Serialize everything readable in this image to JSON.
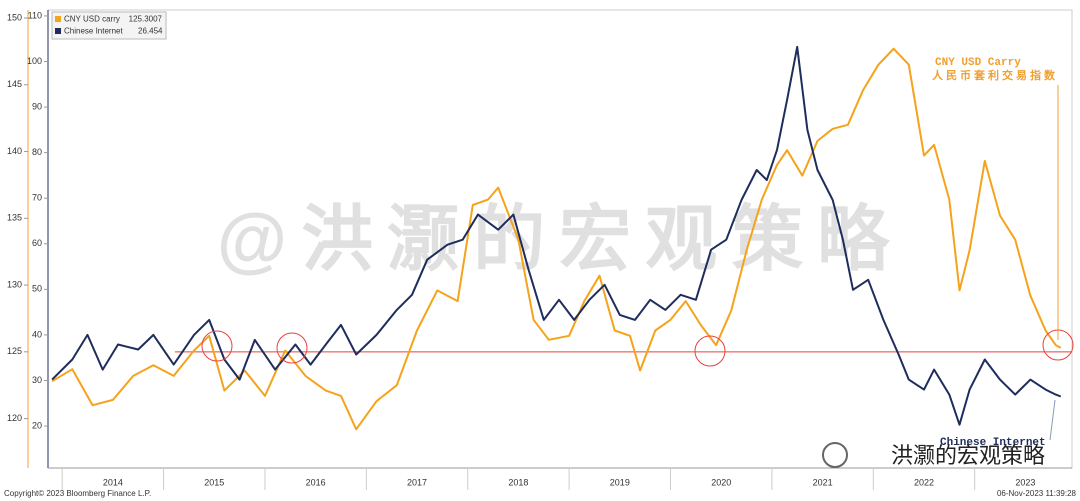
{
  "chart_data": {
    "type": "line",
    "watermark": "@洪灏的宏观策略",
    "logo": "洪灏的宏观策略",
    "source": "Copyright© 2023 Bloomberg Finance L.P.",
    "timestamp": "06-Nov-2023 11:39:28",
    "annotations": [
      "CNY USD Carry",
      "人民币套利交易指数",
      "Chinese Internet"
    ],
    "xlim": [
      2013.86,
      2023.96
    ],
    "xticks": [
      2014,
      2015,
      2016,
      2017,
      2018,
      2019,
      2020,
      2021,
      2022,
      2023
    ],
    "ylim": [
      116.3,
      150.6
    ],
    "yticks": [
      120,
      125,
      130,
      135,
      140,
      145,
      150
    ],
    "y2lim": [
      10.8,
      111.3
    ],
    "y2ticks": [
      20,
      30,
      40,
      50,
      60,
      70,
      80,
      90,
      100,
      110
    ],
    "reference_line": {
      "value": 125,
      "color": "#e8413c"
    },
    "series": [
      {
        "name": "CNY USD carry",
        "last": 125.3007,
        "color": "#f5a31a",
        "x": [
          2013.9,
          2014.1,
          2014.3,
          2014.5,
          2014.7,
          2014.9,
          2015.1,
          2015.3,
          2015.45,
          2015.6,
          2015.8,
          2016.0,
          2016.2,
          2016.4,
          2016.6,
          2016.75,
          2016.9,
          2017.1,
          2017.3,
          2017.5,
          2017.7,
          2017.9,
          2018.05,
          2018.2,
          2018.3,
          2018.5,
          2018.65,
          2018.8,
          2019.0,
          2019.15,
          2019.3,
          2019.45,
          2019.6,
          2019.7,
          2019.85,
          2020.0,
          2020.15,
          2020.3,
          2020.45,
          2020.6,
          2020.75,
          2020.9,
          2021.05,
          2021.15,
          2021.3,
          2021.45,
          2021.6,
          2021.75,
          2021.9,
          2022.05,
          2022.2,
          2022.35,
          2022.5,
          2022.6,
          2022.75,
          2022.85,
          2022.95,
          2023.1,
          2023.25,
          2023.4,
          2023.55,
          2023.7,
          2023.8,
          2023.85
        ],
        "values": [
          122.8,
          123.7,
          121,
          121.4,
          123.2,
          124,
          123.2,
          125.1,
          126.2,
          122.1,
          123.6,
          121.7,
          125.1,
          123.2,
          122.1,
          121.7,
          119.2,
          121.3,
          122.5,
          126.6,
          129.6,
          128.8,
          136,
          136.4,
          137.3,
          133.4,
          127.4,
          125.9,
          126.2,
          128.8,
          130.7,
          126.6,
          126.2,
          123.6,
          126.6,
          127.4,
          128.8,
          127,
          125.5,
          128.1,
          132.6,
          136.4,
          139,
          140.1,
          138.2,
          140.8,
          141.7,
          142,
          144.6,
          146.5,
          147.7,
          146.5,
          139.7,
          140.5,
          136.4,
          129.6,
          132.6,
          139.3,
          135.2,
          133.4,
          129.2,
          126.6,
          125.5,
          125.3
        ]
      },
      {
        "name": "Chinese Internet",
        "last": 26.454,
        "color": "#1f2d5c",
        "axis": "y2",
        "x": [
          2013.9,
          2014.1,
          2014.25,
          2014.4,
          2014.55,
          2014.75,
          2014.9,
          2015.1,
          2015.3,
          2015.45,
          2015.6,
          2015.75,
          2015.9,
          2016.1,
          2016.3,
          2016.45,
          2016.6,
          2016.75,
          2016.9,
          2017.1,
          2017.3,
          2017.45,
          2017.6,
          2017.8,
          2017.95,
          2018.1,
          2018.3,
          2018.45,
          2018.6,
          2018.75,
          2018.9,
          2019.05,
          2019.2,
          2019.35,
          2019.5,
          2019.65,
          2019.8,
          2019.95,
          2020.1,
          2020.25,
          2020.4,
          2020.55,
          2020.7,
          2020.85,
          2020.95,
          2021.05,
          2021.15,
          2021.25,
          2021.35,
          2021.45,
          2021.6,
          2021.7,
          2021.8,
          2021.95,
          2022.1,
          2022.25,
          2022.35,
          2022.5,
          2022.6,
          2022.75,
          2022.85,
          2022.95,
          2023.1,
          2023.25,
          2023.4,
          2023.55,
          2023.7,
          2023.8,
          2023.85
        ],
        "values": [
          30.2,
          34.6,
          40,
          32.4,
          37.9,
          36.8,
          40,
          33.5,
          40,
          43.3,
          34.6,
          30.2,
          38.9,
          32.4,
          37.9,
          33.5,
          37.9,
          42.2,
          35.7,
          40,
          45.5,
          48.8,
          56.5,
          59.8,
          60.9,
          66.4,
          63.1,
          66.4,
          54.3,
          43.3,
          47.7,
          43.3,
          47.7,
          51,
          44.4,
          43.3,
          47.7,
          45.5,
          48.8,
          47.7,
          58.7,
          60.9,
          69.6,
          76.2,
          74,
          80.6,
          91.6,
          103.2,
          85,
          76.2,
          69.6,
          60.9,
          49.9,
          52.1,
          43.3,
          35.7,
          30.2,
          28,
          32.4,
          26.9,
          20.3,
          28,
          34.6,
          30.2,
          26.9,
          30.2,
          28,
          26.9,
          26.5
        ]
      }
    ]
  }
}
